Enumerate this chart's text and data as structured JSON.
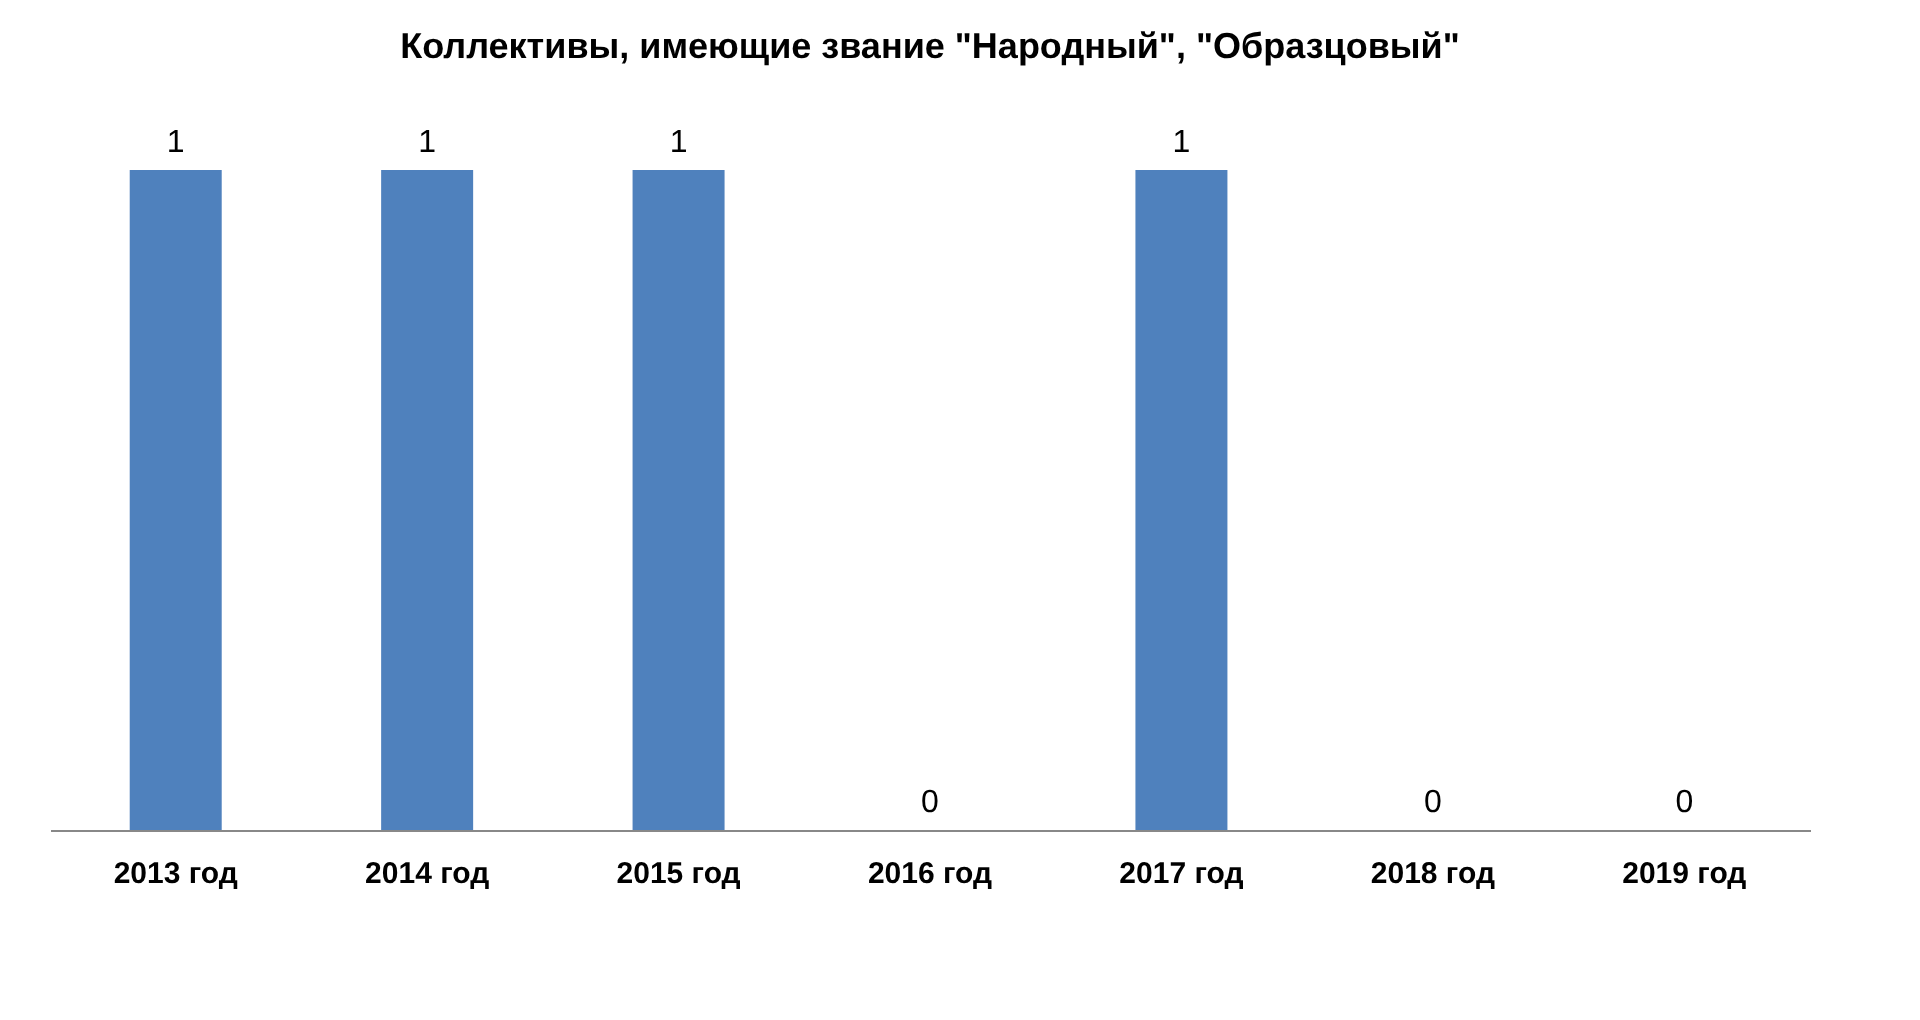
{
  "chart_data": {
    "type": "bar",
    "title": "Коллективы, имеющие звание \"Народный\", \"Образцовый\"",
    "categories": [
      "2013 год",
      "2014 год",
      "2015 год",
      "2016 год",
      "2017 год",
      "2018 год",
      "2019 год"
    ],
    "values": [
      1,
      1,
      1,
      0,
      1,
      0,
      0
    ],
    "color": "#4f81bd",
    "data_labels": true
  }
}
